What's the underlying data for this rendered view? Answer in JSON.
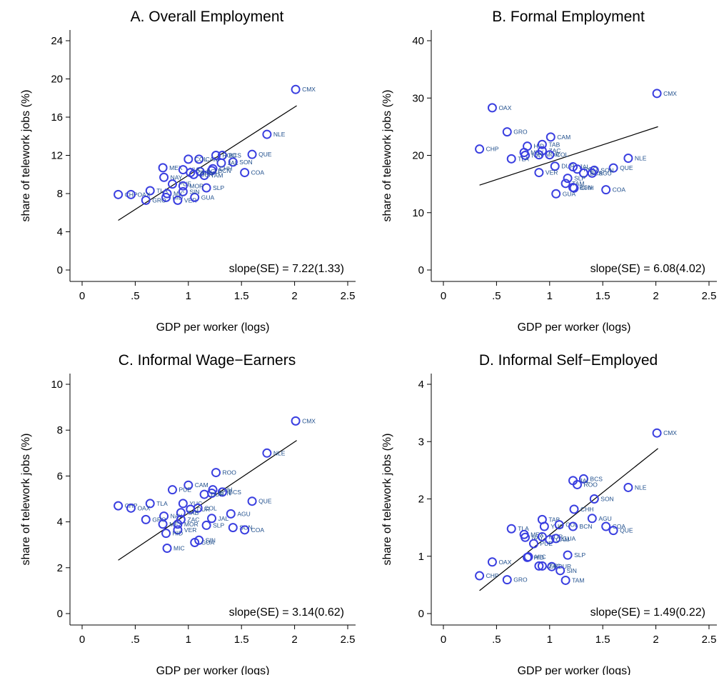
{
  "panel_colors": {
    "marker": "#3a3fe0",
    "label": "#1f4e8c",
    "fit_line": "#000000"
  },
  "chart_data": [
    {
      "type": "scatter",
      "title": "A. Overall Employment",
      "xlabel": "GDP per worker (logs)",
      "ylabel": "share of telework jobs (%)",
      "xlim": [
        0,
        2.5
      ],
      "ylim": [
        0,
        24
      ],
      "xticks": [
        "0",
        ".5",
        "1",
        "1.5",
        "2",
        "2.5"
      ],
      "yticks": [
        "0",
        "4",
        "8",
        "12",
        "16",
        "20",
        "24"
      ],
      "grid": false,
      "annotation": "slope(SE) = 7.22(1.33)",
      "fit": {
        "x": [
          0.34,
          2.02
        ],
        "y": [
          5.2,
          17.2
        ]
      },
      "points": [
        {
          "label": "CMX",
          "x": 2.01,
          "y": 18.9
        },
        {
          "label": "NLE",
          "x": 1.74,
          "y": 14.2
        },
        {
          "label": "QUE",
          "x": 1.6,
          "y": 12.1
        },
        {
          "label": "BCS",
          "x": 1.32,
          "y": 12.0
        },
        {
          "label": "SON",
          "x": 1.42,
          "y": 11.3
        },
        {
          "label": "COA",
          "x": 1.53,
          "y": 10.2
        },
        {
          "label": "JAL",
          "x": 1.31,
          "y": 11.2
        },
        {
          "label": "CAM",
          "x": 1.1,
          "y": 11.6
        },
        {
          "label": "COL",
          "x": 1.0,
          "y": 11.6
        },
        {
          "label": "ROO",
          "x": 1.26,
          "y": 12.0
        },
        {
          "label": "CHH",
          "x": 1.23,
          "y": 10.6
        },
        {
          "label": "BCN",
          "x": 1.22,
          "y": 10.4
        },
        {
          "label": "AGU",
          "x": 1.11,
          "y": 10.3
        },
        {
          "label": "TAM",
          "x": 1.15,
          "y": 9.9
        },
        {
          "label": "MEX",
          "x": 0.76,
          "y": 10.7
        },
        {
          "label": "YUC",
          "x": 0.95,
          "y": 10.5
        },
        {
          "label": "ZAC",
          "x": 1.02,
          "y": 10.2
        },
        {
          "label": "DUR",
          "x": 1.05,
          "y": 10.0
        },
        {
          "label": "NAY",
          "x": 0.77,
          "y": 9.7
        },
        {
          "label": "SLP",
          "x": 1.17,
          "y": 8.6
        },
        {
          "label": "PUE",
          "x": 0.85,
          "y": 9.0
        },
        {
          "label": "MOR",
          "x": 0.95,
          "y": 8.8
        },
        {
          "label": "TLA",
          "x": 0.64,
          "y": 8.3
        },
        {
          "label": "MIC",
          "x": 0.8,
          "y": 8.0
        },
        {
          "label": "HID",
          "x": 0.79,
          "y": 7.6
        },
        {
          "label": "CHP",
          "x": 0.34,
          "y": 7.9
        },
        {
          "label": "OAX",
          "x": 0.46,
          "y": 7.9
        },
        {
          "label": "GRO",
          "x": 0.6,
          "y": 7.3
        },
        {
          "label": "VER",
          "x": 0.9,
          "y": 7.3
        },
        {
          "label": "GUA",
          "x": 1.06,
          "y": 7.6
        },
        {
          "label": "SIN",
          "x": 0.95,
          "y": 8.2
        }
      ]
    },
    {
      "type": "scatter",
      "title": "B. Formal Employment",
      "xlabel": "GDP per worker (logs)",
      "ylabel": "share of telework jobs (%)",
      "xlim": [
        0,
        2.5
      ],
      "ylim": [
        0,
        40
      ],
      "xticks": [
        "0",
        ".5",
        "1",
        "1.5",
        "2",
        "2.5"
      ],
      "yticks": [
        "0",
        "10",
        "20",
        "30",
        "40"
      ],
      "grid": false,
      "annotation": "slope(SE) = 6.08(4.02)",
      "fit": {
        "x": [
          0.34,
          2.02
        ],
        "y": [
          14.8,
          25.0
        ]
      },
      "points": [
        {
          "label": "CMX",
          "x": 2.01,
          "y": 30.8
        },
        {
          "label": "OAX",
          "x": 0.46,
          "y": 28.3
        },
        {
          "label": "GRO",
          "x": 0.6,
          "y": 24.1
        },
        {
          "label": "CAM",
          "x": 1.01,
          "y": 23.2
        },
        {
          "label": "CHP",
          "x": 0.34,
          "y": 21.1
        },
        {
          "label": "HID",
          "x": 0.79,
          "y": 21.6
        },
        {
          "label": "TAB",
          "x": 0.93,
          "y": 21.9
        },
        {
          "label": "ZAC",
          "x": 0.93,
          "y": 20.8
        },
        {
          "label": "MEX",
          "x": 0.76,
          "y": 20.5
        },
        {
          "label": "NAY",
          "x": 0.77,
          "y": 20.0
        },
        {
          "label": "MOR",
          "x": 0.9,
          "y": 20.1
        },
        {
          "label": "TLA",
          "x": 0.64,
          "y": 19.4
        },
        {
          "label": "COL",
          "x": 1.0,
          "y": 20.1
        },
        {
          "label": "NLE",
          "x": 1.74,
          "y": 19.5
        },
        {
          "label": "DUR",
          "x": 1.05,
          "y": 18.1
        },
        {
          "label": "JAL",
          "x": 1.22,
          "y": 18.0
        },
        {
          "label": "ROO",
          "x": 1.26,
          "y": 17.6
        },
        {
          "label": "QUE",
          "x": 1.6,
          "y": 17.8
        },
        {
          "label": "SON",
          "x": 1.42,
          "y": 17.4
        },
        {
          "label": "BCS",
          "x": 1.32,
          "y": 16.9
        },
        {
          "label": "AGU",
          "x": 1.4,
          "y": 16.9
        },
        {
          "label": "VER",
          "x": 0.9,
          "y": 17.0
        },
        {
          "label": "SLP",
          "x": 1.17,
          "y": 16.0
        },
        {
          "label": "TAM",
          "x": 1.15,
          "y": 15.1
        },
        {
          "label": "BCN",
          "x": 1.22,
          "y": 14.4
        },
        {
          "label": "CHH",
          "x": 1.23,
          "y": 14.3
        },
        {
          "label": "COA",
          "x": 1.53,
          "y": 14.0
        },
        {
          "label": "GUA",
          "x": 1.06,
          "y": 13.3
        }
      ]
    },
    {
      "type": "scatter",
      "title": "C. Informal Wage−Earners",
      "xlabel": "GDP per worker (logs)",
      "ylabel": "share of telework jobs (%)",
      "xlim": [
        0,
        2.5
      ],
      "ylim": [
        0,
        10
      ],
      "xticks": [
        "0",
        ".5",
        "1",
        "1.5",
        "2",
        "2.5"
      ],
      "yticks": [
        "0",
        "2",
        "4",
        "6",
        "8",
        "10"
      ],
      "grid": false,
      "annotation": "slope(SE) = 3.14(0.62)",
      "fit": {
        "x": [
          0.34,
          2.02
        ],
        "y": [
          2.33,
          7.55
        ]
      },
      "points": [
        {
          "label": "CMX",
          "x": 2.01,
          "y": 8.4
        },
        {
          "label": "NLE",
          "x": 1.74,
          "y": 7.0
        },
        {
          "label": "ROO",
          "x": 1.26,
          "y": 6.15
        },
        {
          "label": "CAM",
          "x": 1.0,
          "y": 5.6
        },
        {
          "label": "PUE",
          "x": 0.85,
          "y": 5.4
        },
        {
          "label": "CHH",
          "x": 1.23,
          "y": 5.4
        },
        {
          "label": "BCN",
          "x": 1.22,
          "y": 5.25
        },
        {
          "label": "BCS",
          "x": 1.32,
          "y": 5.3
        },
        {
          "label": "DUR",
          "x": 1.15,
          "y": 5.2
        },
        {
          "label": "QUE",
          "x": 1.6,
          "y": 4.9
        },
        {
          "label": "TLA",
          "x": 0.64,
          "y": 4.8
        },
        {
          "label": "YUC",
          "x": 0.95,
          "y": 4.8
        },
        {
          "label": "CHP",
          "x": 0.34,
          "y": 4.7
        },
        {
          "label": "OAX",
          "x": 0.46,
          "y": 4.6
        },
        {
          "label": "DUR2",
          "x": 1.02,
          "y": 4.55
        },
        {
          "label": "COL",
          "x": 1.09,
          "y": 4.6
        },
        {
          "label": "AGU",
          "x": 1.4,
          "y": 4.35
        },
        {
          "label": "TAB",
          "x": 0.93,
          "y": 4.4
        },
        {
          "label": "NAY",
          "x": 0.77,
          "y": 4.25
        },
        {
          "label": "JAL",
          "x": 1.22,
          "y": 4.15
        },
        {
          "label": "GRO",
          "x": 0.6,
          "y": 4.1
        },
        {
          "label": "ZAC",
          "x": 0.93,
          "y": 4.1
        },
        {
          "label": "MEX",
          "x": 0.76,
          "y": 3.9
        },
        {
          "label": "MOR",
          "x": 0.9,
          "y": 3.9
        },
        {
          "label": "SLP",
          "x": 1.17,
          "y": 3.85
        },
        {
          "label": "SON",
          "x": 1.42,
          "y": 3.75
        },
        {
          "label": "COA",
          "x": 1.53,
          "y": 3.65
        },
        {
          "label": "VER",
          "x": 0.9,
          "y": 3.65
        },
        {
          "label": "HID",
          "x": 0.79,
          "y": 3.5
        },
        {
          "label": "SIN",
          "x": 1.1,
          "y": 3.2
        },
        {
          "label": "GUA",
          "x": 1.06,
          "y": 3.1
        },
        {
          "label": "MIC",
          "x": 0.8,
          "y": 2.85
        }
      ]
    },
    {
      "type": "scatter",
      "title": "D. Informal Self−Employed",
      "xlabel": "GDP per worker (logs)",
      "ylabel": "share of telework jobs (%)",
      "xlim": [
        0,
        2.5
      ],
      "ylim": [
        0,
        4
      ],
      "xticks": [
        "0",
        ".5",
        "1",
        "1.5",
        "2",
        "2.5"
      ],
      "yticks": [
        "0",
        "1",
        "2",
        "3",
        "4"
      ],
      "grid": false,
      "annotation": "slope(SE) = 1.49(0.22)",
      "fit": {
        "x": [
          0.34,
          2.02
        ],
        "y": [
          0.4,
          2.88
        ]
      },
      "points": [
        {
          "label": "CMX",
          "x": 2.01,
          "y": 3.15
        },
        {
          "label": "BCS",
          "x": 1.32,
          "y": 2.35
        },
        {
          "label": "JAL",
          "x": 1.22,
          "y": 2.32
        },
        {
          "label": "ROO",
          "x": 1.26,
          "y": 2.25
        },
        {
          "label": "NLE",
          "x": 1.74,
          "y": 2.2
        },
        {
          "label": "SON",
          "x": 1.42,
          "y": 2.0
        },
        {
          "label": "CHH",
          "x": 1.23,
          "y": 1.82
        },
        {
          "label": "AGU",
          "x": 1.4,
          "y": 1.66
        },
        {
          "label": "TAB",
          "x": 0.93,
          "y": 1.64
        },
        {
          "label": "COA",
          "x": 1.53,
          "y": 1.52
        },
        {
          "label": "YUC",
          "x": 0.95,
          "y": 1.52
        },
        {
          "label": "COL",
          "x": 1.09,
          "y": 1.55
        },
        {
          "label": "BCN",
          "x": 1.22,
          "y": 1.52
        },
        {
          "label": "TLA",
          "x": 0.64,
          "y": 1.48
        },
        {
          "label": "QUE",
          "x": 1.6,
          "y": 1.45
        },
        {
          "label": "MEX",
          "x": 0.76,
          "y": 1.38
        },
        {
          "label": "NAY",
          "x": 0.77,
          "y": 1.33
        },
        {
          "label": "MOR",
          "x": 0.93,
          "y": 1.34
        },
        {
          "label": "GUA",
          "x": 1.06,
          "y": 1.31
        },
        {
          "label": "CAM",
          "x": 1.0,
          "y": 1.29
        },
        {
          "label": "PUE",
          "x": 0.85,
          "y": 1.22
        },
        {
          "label": "SLP",
          "x": 1.17,
          "y": 1.02
        },
        {
          "label": "MIC",
          "x": 0.8,
          "y": 0.99
        },
        {
          "label": "HID",
          "x": 0.79,
          "y": 0.98
        },
        {
          "label": "OAX",
          "x": 0.46,
          "y": 0.9
        },
        {
          "label": "VER",
          "x": 0.9,
          "y": 0.83
        },
        {
          "label": "DUR",
          "x": 1.02,
          "y": 0.82
        },
        {
          "label": "ZAC",
          "x": 0.93,
          "y": 0.83
        },
        {
          "label": "SIN",
          "x": 1.1,
          "y": 0.75
        },
        {
          "label": "CHP",
          "x": 0.34,
          "y": 0.66
        },
        {
          "label": "GRO",
          "x": 0.6,
          "y": 0.59
        },
        {
          "label": "TAM",
          "x": 1.15,
          "y": 0.58
        }
      ]
    }
  ]
}
